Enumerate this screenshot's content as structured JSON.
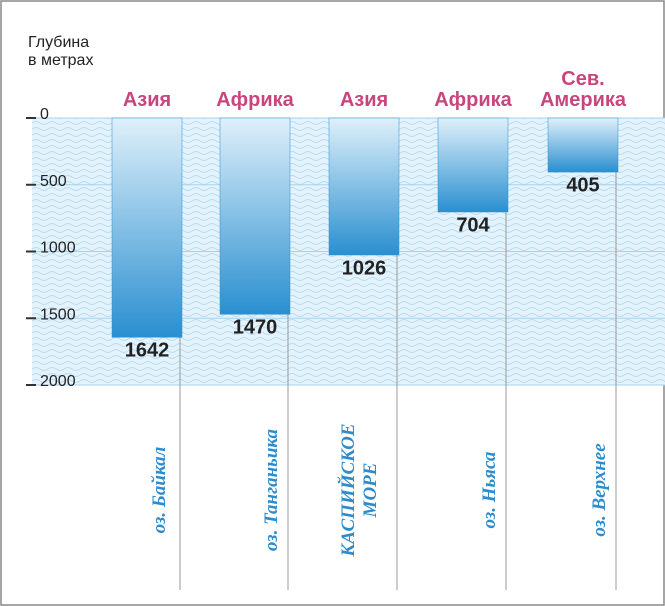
{
  "chart_data": {
    "type": "bar",
    "y_label": "Глубина\nв метрах",
    "categories": [
      "оз. Байкал",
      "оз. Танганьика",
      "КАСПИЙСКОЕ\nМОРЕ",
      "оз. Ньяса",
      "оз. Верхнее"
    ],
    "continents": [
      "Азия",
      "Африка",
      "Азия",
      "Африка",
      "Сев.\nАмерика"
    ],
    "values": [
      1642,
      1470,
      1026,
      704,
      405
    ],
    "color": "#2a8fd0",
    "ylim": [
      0,
      2000
    ],
    "yticks": [
      0,
      500,
      1000,
      1500,
      2000
    ],
    "y_inverted": true,
    "grid": true
  }
}
